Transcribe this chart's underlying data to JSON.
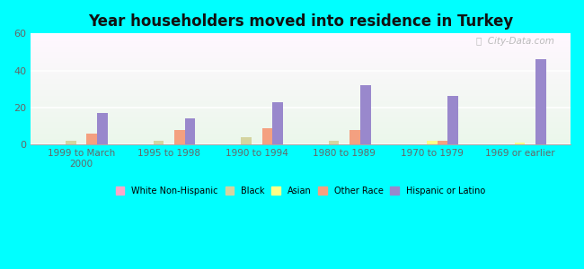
{
  "title": "Year householders moved into residence in Turkey",
  "categories": [
    "1999 to March\n2000",
    "1995 to 1998",
    "1990 to 1994",
    "1980 to 1989",
    "1970 to 1979",
    "1969 or earlier"
  ],
  "series": {
    "White Non-Hispanic": [
      0,
      0,
      0,
      0,
      0,
      0
    ],
    "Black": [
      2,
      2,
      4,
      2,
      0,
      0
    ],
    "Asian": [
      0,
      0,
      0,
      0,
      2,
      1
    ],
    "Other Race": [
      6,
      8,
      9,
      8,
      2,
      0
    ],
    "Hispanic or Latino": [
      17,
      14,
      23,
      32,
      26,
      46
    ]
  },
  "colors": {
    "White Non-Hispanic": "#f9a8c9",
    "Black": "#d4d4a0",
    "Asian": "#ffff88",
    "Other Race": "#f4a080",
    "Hispanic or Latino": "#9988cc"
  },
  "legend_colors": {
    "White Non-Hispanic": "#f9a8c9",
    "Black": "#d4d4a0",
    "Asian": "#ffff88",
    "Other Race": "#f4a080",
    "Hispanic or Latino": "#9988cc"
  },
  "ylim": [
    0,
    60
  ],
  "yticks": [
    0,
    20,
    40,
    60
  ],
  "outer_bg": "#00ffff",
  "watermark": "ⓘ  City-Data.com"
}
